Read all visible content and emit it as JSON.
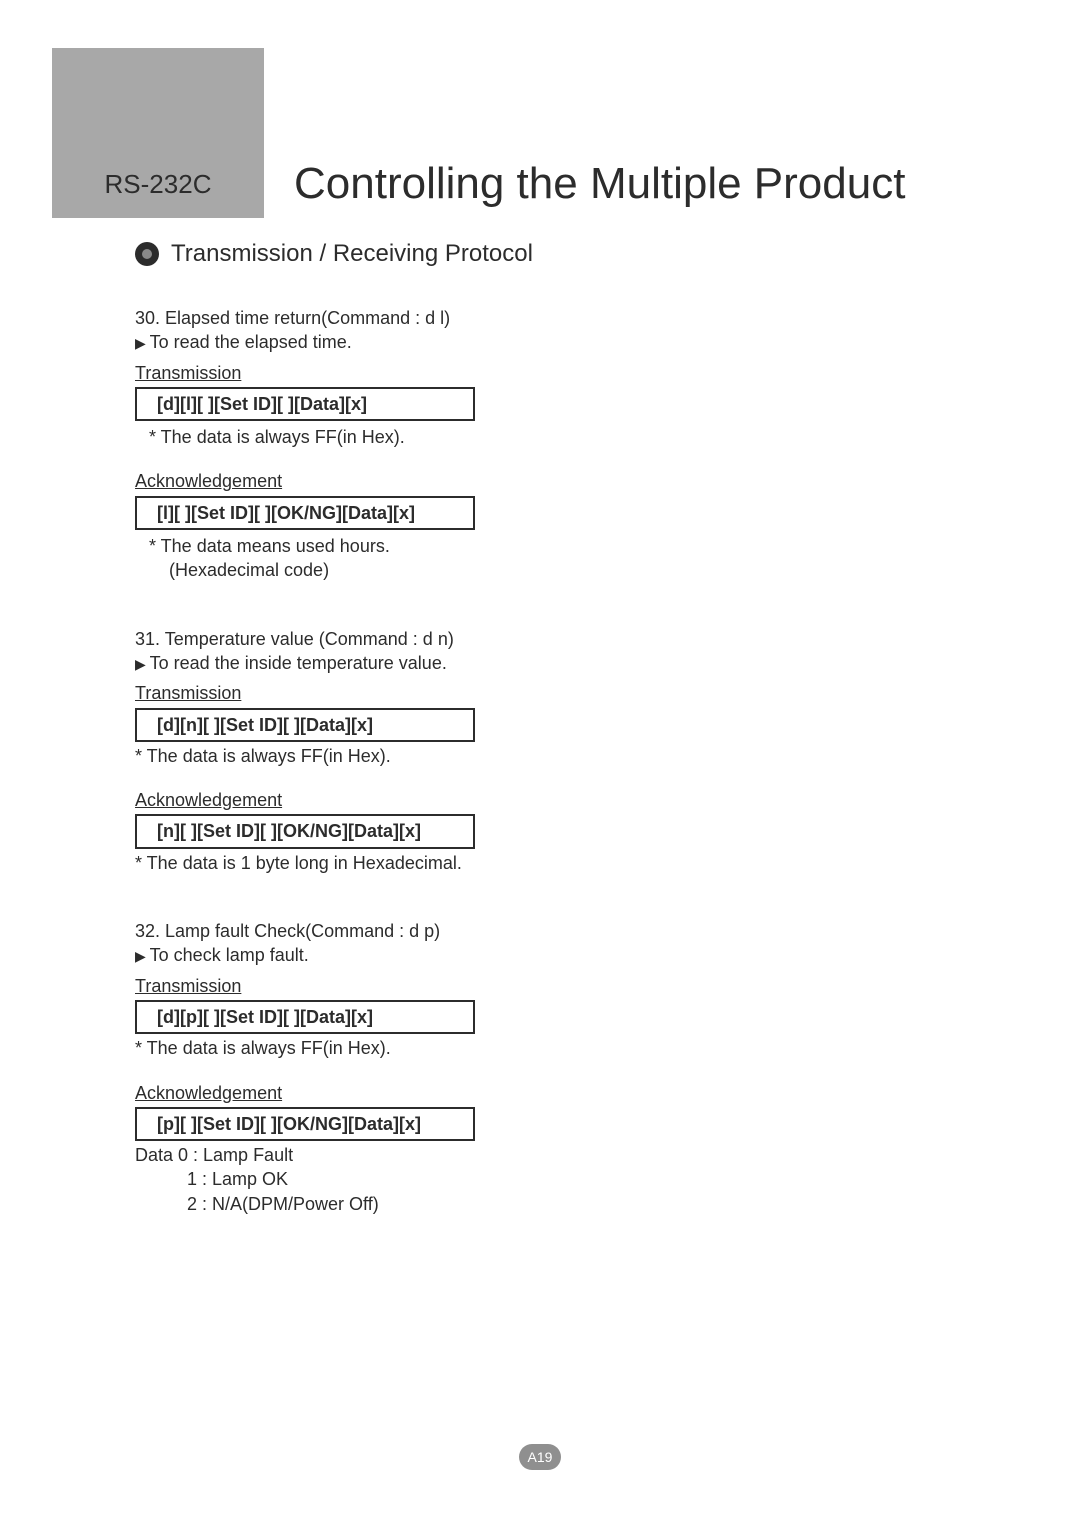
{
  "header": {
    "prefix": "RS-232C",
    "title": "Controlling the Multiple Product"
  },
  "subheader": "Transmission / Receiving Protocol",
  "sections": [
    {
      "title": "30. Elapsed time return(Command : d l)",
      "desc": "To read the elapsed time.",
      "tx_label": "Transmission",
      "tx_box": "[d][l][ ][Set ID][ ][Data][x]",
      "tx_note": "* The data is always FF(in Hex).",
      "ack_label": "Acknowledgement",
      "ack_box": "[l][ ][Set ID][ ][OK/NG][Data][x]",
      "ack_note1": "* The data means used hours.",
      "ack_note2": "(Hexadecimal code)"
    },
    {
      "title": "31. Temperature value (Command : d n)",
      "desc": "To read the inside temperature value.",
      "tx_label": "Transmission",
      "tx_box": "[d][n][ ][Set ID][ ][Data][x]",
      "tx_note": "* The data is always FF(in Hex).",
      "ack_label": "Acknowledgement",
      "ack_box": "[n][ ][Set ID][ ][OK/NG][Data][x]",
      "ack_note1": "* The data  is 1 byte long in Hexadecimal."
    },
    {
      "title": "32. Lamp fault Check(Command : d p)",
      "desc": "To check lamp fault.",
      "tx_label": "Transmission",
      "tx_box": "[d][p][ ][Set ID][ ][Data][x]",
      "tx_note": "* The data is always FF(in Hex).",
      "ack_label": "Acknowledgement",
      "ack_box": "[p][ ][Set ID][ ][OK/NG][Data][x]",
      "data_lines": [
        "Data 0 : Lamp Fault",
        "1 : Lamp OK",
        "2 : N/A(DPM/Power Off)"
      ]
    }
  ],
  "page_number": "A19",
  "colors": {
    "bar": "#a8a8a8",
    "text": "#2c2c2c",
    "badge_bg": "#8f8f8f",
    "badge_fg": "#ffffff"
  }
}
